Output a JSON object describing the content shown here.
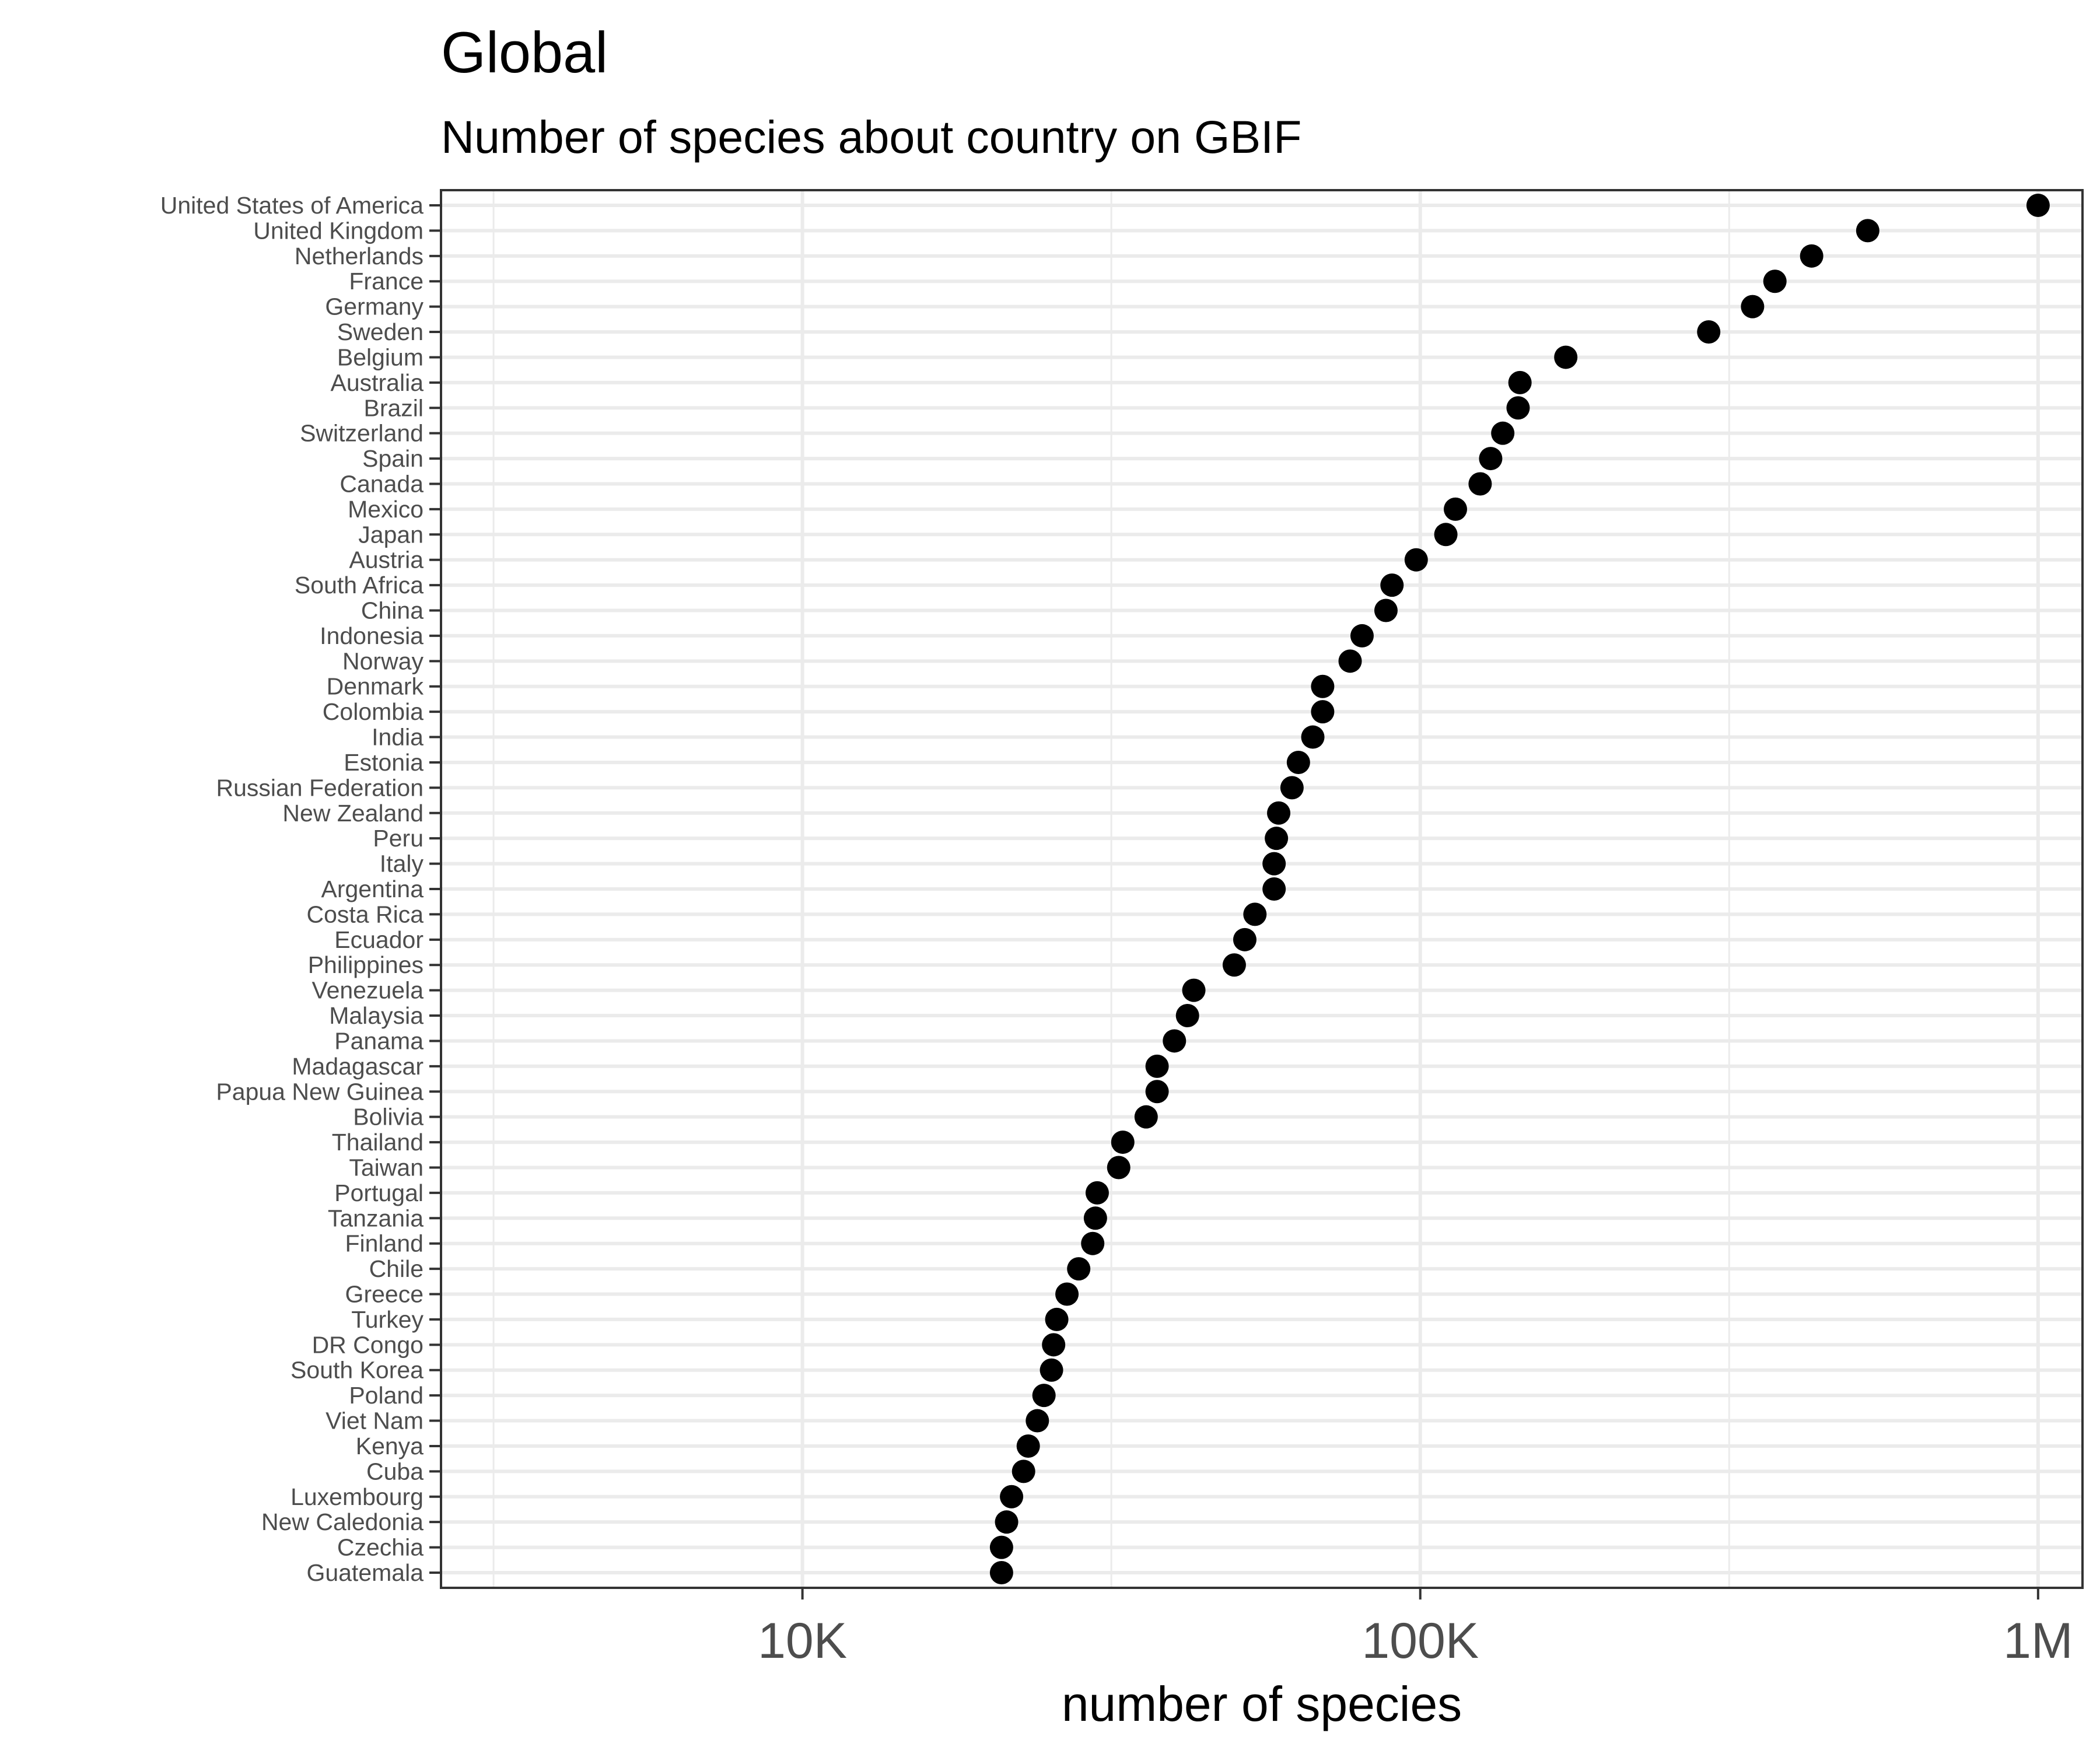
{
  "chart_data": {
    "type": "scatter",
    "title": "Global",
    "subtitle": "Number of species about country on GBIF",
    "xlabel": "number of species",
    "ylabel": "",
    "x_scale": "log10",
    "xlim": [
      2600,
      1180000
    ],
    "x_ticks": [
      {
        "value": 10000,
        "label": "10K"
      },
      {
        "value": 100000,
        "label": "100K"
      },
      {
        "value": 1000000,
        "label": "1M"
      }
    ],
    "grid": true,
    "legend": "none",
    "point_color": "#000000",
    "categories": [
      "United States of America",
      "United Kingdom",
      "Netherlands",
      "France",
      "Germany",
      "Sweden",
      "Belgium",
      "Australia",
      "Brazil",
      "Switzerland",
      "Spain",
      "Canada",
      "Mexico",
      "Japan",
      "Austria",
      "South Africa",
      "China",
      "Indonesia",
      "Norway",
      "Denmark",
      "Colombia",
      "India",
      "Estonia",
      "Russian Federation",
      "New Zealand",
      "Peru",
      "Italy",
      "Argentina",
      "Costa Rica",
      "Ecuador",
      "Philippines",
      "Venezuela",
      "Malaysia",
      "Panama",
      "Madagascar",
      "Papua New Guinea",
      "Bolivia",
      "Thailand",
      "Taiwan",
      "Portugal",
      "Tanzania",
      "Finland",
      "Chile",
      "Greece",
      "Turkey",
      "DR Congo",
      "South Korea",
      "Poland",
      "Viet Nam",
      "Kenya",
      "Cuba",
      "Luxembourg",
      "New Caledonia",
      "Czechia",
      "Guatemala"
    ],
    "values": [
      1000000,
      530000,
      430000,
      375000,
      345000,
      293000,
      172000,
      145000,
      144000,
      136000,
      130000,
      125000,
      114000,
      110000,
      98500,
      90000,
      88000,
      80500,
      77000,
      69500,
      69500,
      67000,
      63500,
      62000,
      59000,
      58500,
      58000,
      58000,
      54000,
      52000,
      50000,
      43000,
      42000,
      40000,
      37500,
      37500,
      36000,
      33000,
      32500,
      30000,
      29800,
      29500,
      28000,
      26800,
      25800,
      25500,
      25300,
      24600,
      24000,
      23200,
      22800,
      21800,
      21400,
      21000,
      21000
    ]
  }
}
